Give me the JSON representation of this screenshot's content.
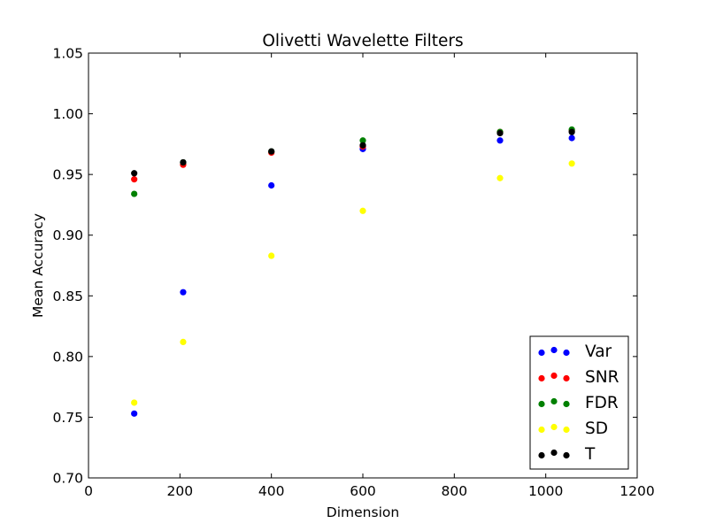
{
  "chart_data": {
    "type": "scatter",
    "title": "Olivetti Wavelette Filters",
    "xlabel": "Dimension",
    "ylabel": "Mean Accuracy",
    "xlim": [
      0,
      1200
    ],
    "ylim": [
      0.7,
      1.05
    ],
    "xticks": [
      "0",
      "200",
      "400",
      "600",
      "800",
      "1000",
      "1200"
    ],
    "yticks": [
      "0.70",
      "0.75",
      "0.80",
      "0.85",
      "0.90",
      "0.95",
      "1.00",
      "1.05"
    ],
    "grid": false,
    "legend_position": "lower-right",
    "x": [
      100,
      207,
      400,
      600,
      900,
      1057
    ],
    "series": [
      {
        "name": "Var",
        "color": "#0000ff",
        "values": [
          0.753,
          0.853,
          0.941,
          0.971,
          0.978,
          0.98
        ]
      },
      {
        "name": "SNR",
        "color": "#ff0000",
        "values": [
          0.946,
          0.958,
          0.968,
          0.973,
          0.985,
          0.986
        ]
      },
      {
        "name": "FDR",
        "color": "#008000",
        "values": [
          0.934,
          0.96,
          0.969,
          0.978,
          0.985,
          0.987
        ]
      },
      {
        "name": "SD",
        "color": "#ffff00",
        "values": [
          0.762,
          0.812,
          0.883,
          0.92,
          0.947,
          0.959
        ]
      },
      {
        "name": "T",
        "color": "#000000",
        "values": [
          0.951,
          0.96,
          0.969,
          0.974,
          0.984,
          0.985
        ]
      }
    ]
  }
}
